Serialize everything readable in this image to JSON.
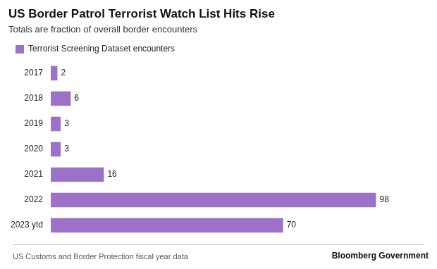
{
  "chart_data": {
    "type": "bar",
    "orientation": "horizontal",
    "title": "US Border Patrol Terrorist Watch List Hits Rise",
    "subtitle": "Totals are fraction of overall border encounters",
    "annotations": [
      "US Customs and Border Protection fiscal year data",
      "Bloomberg Government"
    ],
    "categories": [
      "2017",
      "2018",
      "2019",
      "2020",
      "2021",
      "2022",
      "2023 ytd"
    ],
    "series": [
      {
        "name": "Terrorist Screening Dataset encounters",
        "color": "#9b72c8",
        "values": [
          2,
          6,
          3,
          3,
          16,
          98,
          70
        ]
      }
    ],
    "xlim": [
      0,
      110
    ],
    "grid": false,
    "legend": "top-left",
    "data_labels": true,
    "tick_labels": "y"
  }
}
